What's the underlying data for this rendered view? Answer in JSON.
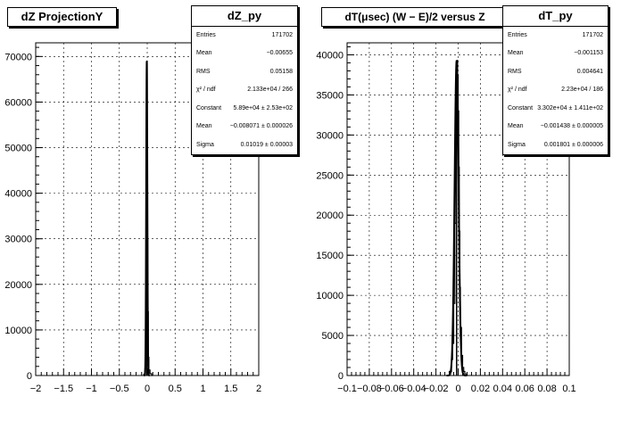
{
  "chart_data": [
    {
      "type": "histogram",
      "title": "dZ ProjectionY",
      "xlim": [
        -2,
        2
      ],
      "ylim": [
        0,
        73000
      ],
      "x_ticks": [
        "−2",
        "−1.5",
        "−1",
        "−0.5",
        "0",
        "0.5",
        "1",
        "1.5",
        "2"
      ],
      "x_tick_values": [
        -2,
        -1.5,
        -1,
        -0.5,
        0,
        0.5,
        1,
        1.5,
        2
      ],
      "y_ticks": [
        "0",
        "10000",
        "20000",
        "30000",
        "40000",
        "50000",
        "60000",
        "70000"
      ],
      "y_tick_values": [
        0,
        10000,
        20000,
        30000,
        40000,
        50000,
        60000,
        70000
      ],
      "grid": true,
      "peak": {
        "x": -0.008,
        "y": 69000,
        "sigma": 0.01019
      },
      "hist_x": [
        -0.06,
        -0.04,
        -0.03,
        -0.02,
        -0.015,
        -0.01,
        -0.005,
        0.0,
        0.005,
        0.01,
        0.02,
        0.03,
        0.05,
        0.08
      ],
      "hist_y": [
        300,
        1500,
        5000,
        16000,
        30000,
        44000,
        69000,
        52000,
        30000,
        14000,
        4000,
        1200,
        400,
        0
      ],
      "stats": {
        "name": "dZ_py",
        "rows": [
          {
            "label": "Entries",
            "value": "171702"
          },
          {
            "label": "Mean",
            "value": "−0.00655"
          },
          {
            "label": "RMS",
            "value": "0.05158"
          },
          {
            "label": "χ² / ndf",
            "value": "2.133e+04 / 266"
          },
          {
            "label": "Constant",
            "value": "5.89e+04 ± 2.53e+02"
          },
          {
            "label": "Mean",
            "value": "−0.008071 ± 0.000026"
          },
          {
            "label": "Sigma",
            "value": "0.01019 ± 0.00003"
          }
        ]
      }
    },
    {
      "type": "histogram",
      "title": "dT(μsec) (W − E)/2 versus Z",
      "xlim": [
        -0.1,
        0.1
      ],
      "ylim": [
        0,
        41500
      ],
      "x_ticks": [
        "−0.1",
        "−0.08",
        "−0.06",
        "−0.04",
        "−0.02",
        "0",
        "0.02",
        "0.04",
        "0.06",
        "0.08",
        "0.1"
      ],
      "x_tick_values": [
        -0.1,
        -0.08,
        -0.06,
        -0.04,
        -0.02,
        0,
        0.02,
        0.04,
        0.06,
        0.08,
        0.1
      ],
      "y_ticks": [
        "0",
        "5000",
        "10000",
        "15000",
        "20000",
        "25000",
        "30000",
        "35000",
        "40000"
      ],
      "y_tick_values": [
        0,
        5000,
        10000,
        15000,
        20000,
        25000,
        30000,
        35000,
        40000
      ],
      "grid": true,
      "peak": {
        "x": -0.0014,
        "y": 39300,
        "sigma": 0.001801
      },
      "hist_x": [
        -0.008,
        -0.006,
        -0.005,
        -0.004,
        -0.003,
        -0.002,
        -0.0015,
        -0.001,
        -0.0005,
        0.0,
        0.0005,
        0.001,
        0.0015,
        0.002,
        0.003,
        0.004,
        0.005,
        0.006,
        0.008
      ],
      "hist_y": [
        500,
        2000,
        4000,
        9000,
        19000,
        31000,
        37000,
        39300,
        37500,
        33000,
        26000,
        18000,
        11000,
        6000,
        2500,
        1000,
        500,
        200,
        0
      ],
      "stats": {
        "name": "dT_py",
        "rows": [
          {
            "label": "Entries",
            "value": "171702"
          },
          {
            "label": "Mean",
            "value": "−0.001153"
          },
          {
            "label": "RMS",
            "value": "0.004641"
          },
          {
            "label": "χ² / ndf",
            "value": "2.23e+04 / 186"
          },
          {
            "label": "Constant",
            "value": "3.302e+04 ± 1.411e+02"
          },
          {
            "label": "Mean",
            "value": "−0.001438 ± 0.000005"
          },
          {
            "label": "Sigma",
            "value": "0.001801 ± 0.000006"
          }
        ]
      }
    }
  ]
}
